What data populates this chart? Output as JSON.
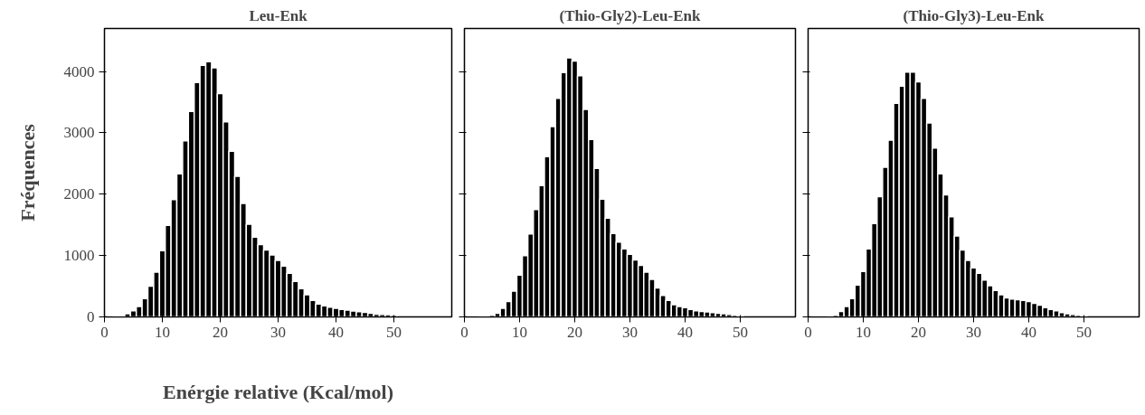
{
  "chart_data": [
    {
      "type": "histogram",
      "title": "Leu-Enk",
      "ylabel": "Fréquences",
      "xlabel": "Enérgie relative (Kcal/mol)",
      "color": "#000000",
      "bins": [
        0.5,
        1.5,
        2.5,
        3.5,
        4.5,
        5.5,
        6.5,
        7.5,
        8.5,
        9.5,
        10.5,
        11.5,
        12.5,
        13.5,
        14.5,
        15.5,
        16.5,
        17.5,
        18.5,
        19.5,
        20.5,
        21.5,
        22.5,
        23.5,
        24.5,
        25.5,
        26.5,
        27.5,
        28.5,
        29.5,
        30.5,
        31.5,
        32.5,
        33.5,
        34.5,
        35.5,
        36.5,
        37.5,
        38.5,
        39.5,
        40.5,
        41.5,
        42.5,
        43.5,
        44.5,
        45.5,
        46.5,
        47.5,
        48.5,
        49.5,
        50.5
      ],
      "values": [
        5,
        10,
        20,
        50,
        100,
        170,
        300,
        500,
        730,
        1080,
        1490,
        1910,
        2330,
        2870,
        3350,
        3820,
        4100,
        4160,
        4060,
        3640,
        3180,
        2700,
        2290,
        1850,
        1510,
        1300,
        1180,
        1090,
        1010,
        920,
        830,
        710,
        580,
        460,
        360,
        270,
        210,
        180,
        160,
        140,
        120,
        110,
        95,
        85,
        75,
        60,
        45,
        40,
        35,
        30
      ],
      "xlim": [
        0,
        60
      ],
      "xticks": [
        0,
        10,
        20,
        30,
        40,
        50
      ],
      "ylim": [
        0,
        4700
      ],
      "yticks": [
        0,
        1000,
        2000,
        3000,
        4000
      ],
      "grid": false
    },
    {
      "type": "histogram",
      "title": "(Thio-Gly2)-Leu-Enk",
      "color": "#000000",
      "bins": [
        0.5,
        1.5,
        2.5,
        3.5,
        4.5,
        5.5,
        6.5,
        7.5,
        8.5,
        9.5,
        10.5,
        11.5,
        12.5,
        13.5,
        14.5,
        15.5,
        16.5,
        17.5,
        18.5,
        19.5,
        20.5,
        21.5,
        22.5,
        23.5,
        24.5,
        25.5,
        26.5,
        27.5,
        28.5,
        29.5,
        30.5,
        31.5,
        32.5,
        33.5,
        34.5,
        35.5,
        36.5,
        37.5,
        38.5,
        39.5,
        40.5,
        41.5,
        42.5,
        43.5,
        44.5,
        45.5,
        46.5,
        47.5,
        48.5,
        49.5,
        50.5
      ],
      "values": [
        5,
        5,
        10,
        20,
        30,
        60,
        140,
        250,
        420,
        680,
        1000,
        1350,
        1750,
        2140,
        2610,
        3100,
        3560,
        3980,
        4220,
        4170,
        3930,
        3380,
        2890,
        2420,
        1920,
        1610,
        1360,
        1220,
        1110,
        1020,
        930,
        840,
        730,
        610,
        470,
        350,
        270,
        200,
        170,
        150,
        120,
        100,
        90,
        80,
        70,
        60,
        50,
        40,
        30,
        20
      ],
      "xlim": [
        0,
        60
      ],
      "xticks": [
        0,
        10,
        20,
        30,
        40,
        50
      ],
      "ylim": [
        0,
        4700
      ],
      "yticks": [
        0,
        1000,
        2000,
        3000,
        4000
      ],
      "tick_labels": "x",
      "grid": false
    },
    {
      "type": "histogram",
      "title": "(Thio-Gly3)-Leu-Enk",
      "color": "#000000",
      "bins": [
        0.5,
        1.5,
        2.5,
        3.5,
        4.5,
        5.5,
        6.5,
        7.5,
        8.5,
        9.5,
        10.5,
        11.5,
        12.5,
        13.5,
        14.5,
        15.5,
        16.5,
        17.5,
        18.5,
        19.5,
        20.5,
        21.5,
        22.5,
        23.5,
        24.5,
        25.5,
        26.5,
        27.5,
        28.5,
        29.5,
        30.5,
        31.5,
        32.5,
        33.5,
        34.5,
        35.5,
        36.5,
        37.5,
        38.5,
        39.5,
        40.5,
        41.5,
        42.5,
        43.5,
        44.5,
        45.5,
        46.5,
        47.5,
        48.5,
        49.5,
        50.5
      ],
      "values": [
        5,
        5,
        5,
        10,
        30,
        90,
        170,
        300,
        520,
        740,
        1110,
        1520,
        1960,
        2440,
        2880,
        3480,
        3760,
        3990,
        3990,
        3830,
        3560,
        3160,
        2750,
        2330,
        1990,
        1630,
        1320,
        1090,
        920,
        800,
        710,
        600,
        510,
        430,
        360,
        310,
        290,
        280,
        270,
        250,
        220,
        190,
        150,
        120,
        100,
        70,
        50,
        40,
        30,
        20
      ],
      "xlim": [
        0,
        60
      ],
      "xticks": [
        0,
        10,
        20,
        30,
        40,
        50
      ],
      "ylim": [
        0,
        4700
      ],
      "yticks": [
        0,
        1000,
        2000,
        3000,
        4000
      ],
      "tick_labels": "x",
      "grid": false
    }
  ]
}
